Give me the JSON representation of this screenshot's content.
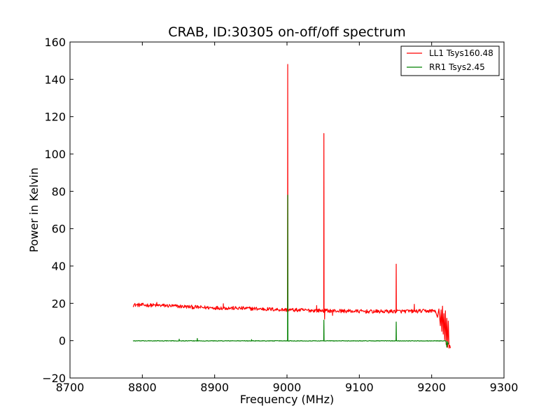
{
  "chart_data": {
    "type": "line",
    "title": "CRAB, ID:30305 on-off/off spectrum",
    "xlabel": "Frequency (MHz)",
    "ylabel": "Power in Kelvin",
    "xlim": [
      8700,
      9300
    ],
    "ylim": [
      -20,
      160
    ],
    "xticks": [
      8700,
      8800,
      8900,
      9000,
      9100,
      9200,
      9300
    ],
    "yticks": [
      -20,
      0,
      20,
      40,
      60,
      80,
      100,
      120,
      140,
      160
    ],
    "grid": false,
    "legend_position": "top-right",
    "series": [
      {
        "name": "LL1 Tsys160.48",
        "color": "#ff0000",
        "baseline": [
          [
            8787,
            19.2
          ],
          [
            8830,
            18.8
          ],
          [
            8880,
            17.8
          ],
          [
            8950,
            17.2
          ],
          [
            9000,
            16.5
          ],
          [
            9060,
            16.0
          ],
          [
            9120,
            15.6
          ],
          [
            9180,
            15.8
          ],
          [
            9205,
            16.0
          ]
        ],
        "noise_amplitude": 1.0,
        "spikes": [
          {
            "x": 9001,
            "y": 148
          },
          {
            "x": 9051,
            "y": 111
          },
          {
            "x": 9151,
            "y": 41
          },
          {
            "x": 8820,
            "y": 20.5
          },
          {
            "x": 8912,
            "y": 19.8
          },
          {
            "x": 9041,
            "y": 18.8
          },
          {
            "x": 9176,
            "y": 19.5
          }
        ],
        "dips": [
          {
            "x": 9052,
            "y": 11.5
          },
          {
            "x": 9063,
            "y": 13.5
          }
        ],
        "edge": [
          [
            9205,
            16.0
          ],
          [
            9208,
            12.5
          ],
          [
            9210,
            17.0
          ],
          [
            9212,
            8.0
          ],
          [
            9213,
            16.5
          ],
          [
            9214,
            5.0
          ],
          [
            9215,
            18.5
          ],
          [
            9216,
            3.5
          ],
          [
            9217,
            14.5
          ],
          [
            9218,
            0.5
          ],
          [
            9219,
            16.0
          ],
          [
            9220,
            -2.0
          ],
          [
            9221,
            12.0
          ],
          [
            9222,
            -3.5
          ],
          [
            9223,
            10.5
          ],
          [
            9224,
            -4.0
          ],
          [
            9225,
            -2.5
          ],
          [
            9226,
            -4.0
          ]
        ]
      },
      {
        "name": "RR1 Tsys2.45",
        "color": "#008000",
        "baseline": [
          [
            8787,
            -0.1
          ],
          [
            9220,
            -0.1
          ]
        ],
        "noise_amplitude": 0.15,
        "spikes": [
          {
            "x": 9001,
            "y": 78
          },
          {
            "x": 9051,
            "y": 11
          },
          {
            "x": 9151,
            "y": 10
          },
          {
            "x": 8851,
            "y": 0.8
          },
          {
            "x": 8876,
            "y": 1.2
          },
          {
            "x": 8951,
            "y": 0.6
          }
        ],
        "dips": [],
        "edge": [
          [
            9220,
            -0.3
          ],
          [
            9221,
            -3.5
          ],
          [
            9222,
            -0.5
          ],
          [
            9223,
            -2.0
          ]
        ]
      }
    ]
  }
}
